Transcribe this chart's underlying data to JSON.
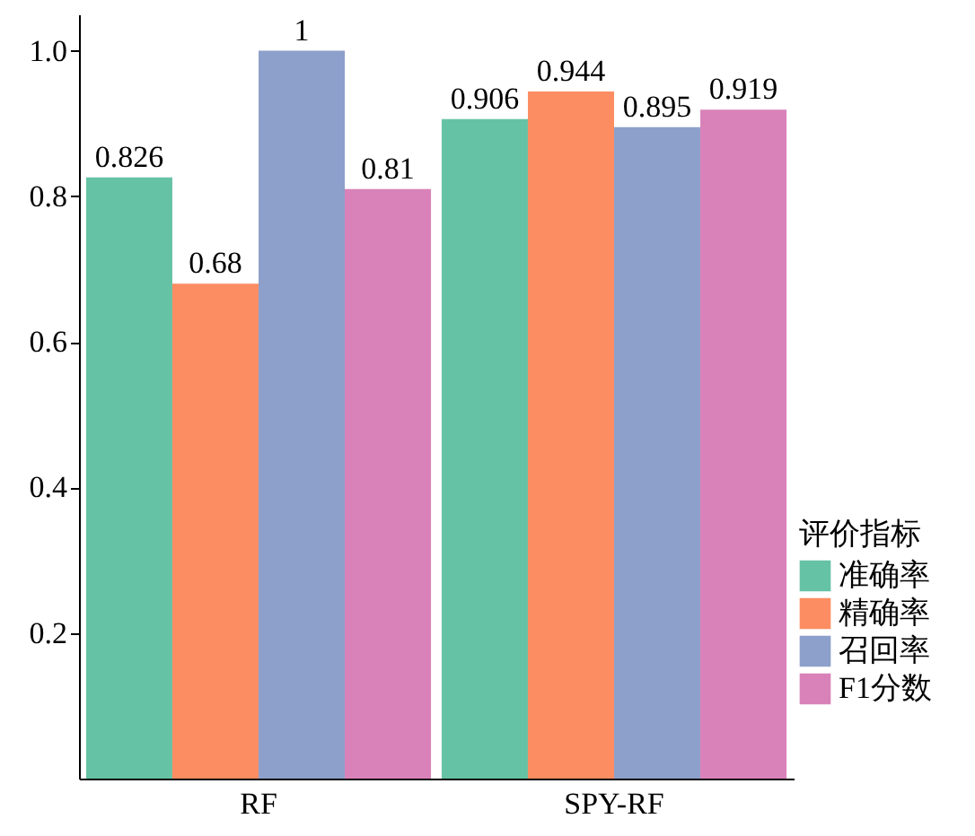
{
  "chart_data": {
    "type": "bar",
    "categories": [
      "RF",
      "SPY-RF"
    ],
    "series": [
      {
        "name": "准确率",
        "color": "#66c2a5",
        "values": [
          0.826,
          0.906
        ]
      },
      {
        "name": "精确率",
        "color": "#fc8d62",
        "values": [
          0.68,
          0.944
        ]
      },
      {
        "name": "召回率",
        "color": "#8da0cb",
        "values": [
          1,
          0.895
        ]
      },
      {
        "name": "F1分数",
        "color": "#d982b9",
        "values": [
          0.81,
          0.919
        ]
      }
    ],
    "legend_title": "评价指标",
    "legend": "bottom right",
    "data_labels": true,
    "grid": false,
    "ylim": [
      0,
      1.05
    ],
    "yticks": [
      0.2,
      0.4,
      0.6,
      0.8,
      {
        "value": 1,
        "label": "1.0"
      }
    ]
  }
}
